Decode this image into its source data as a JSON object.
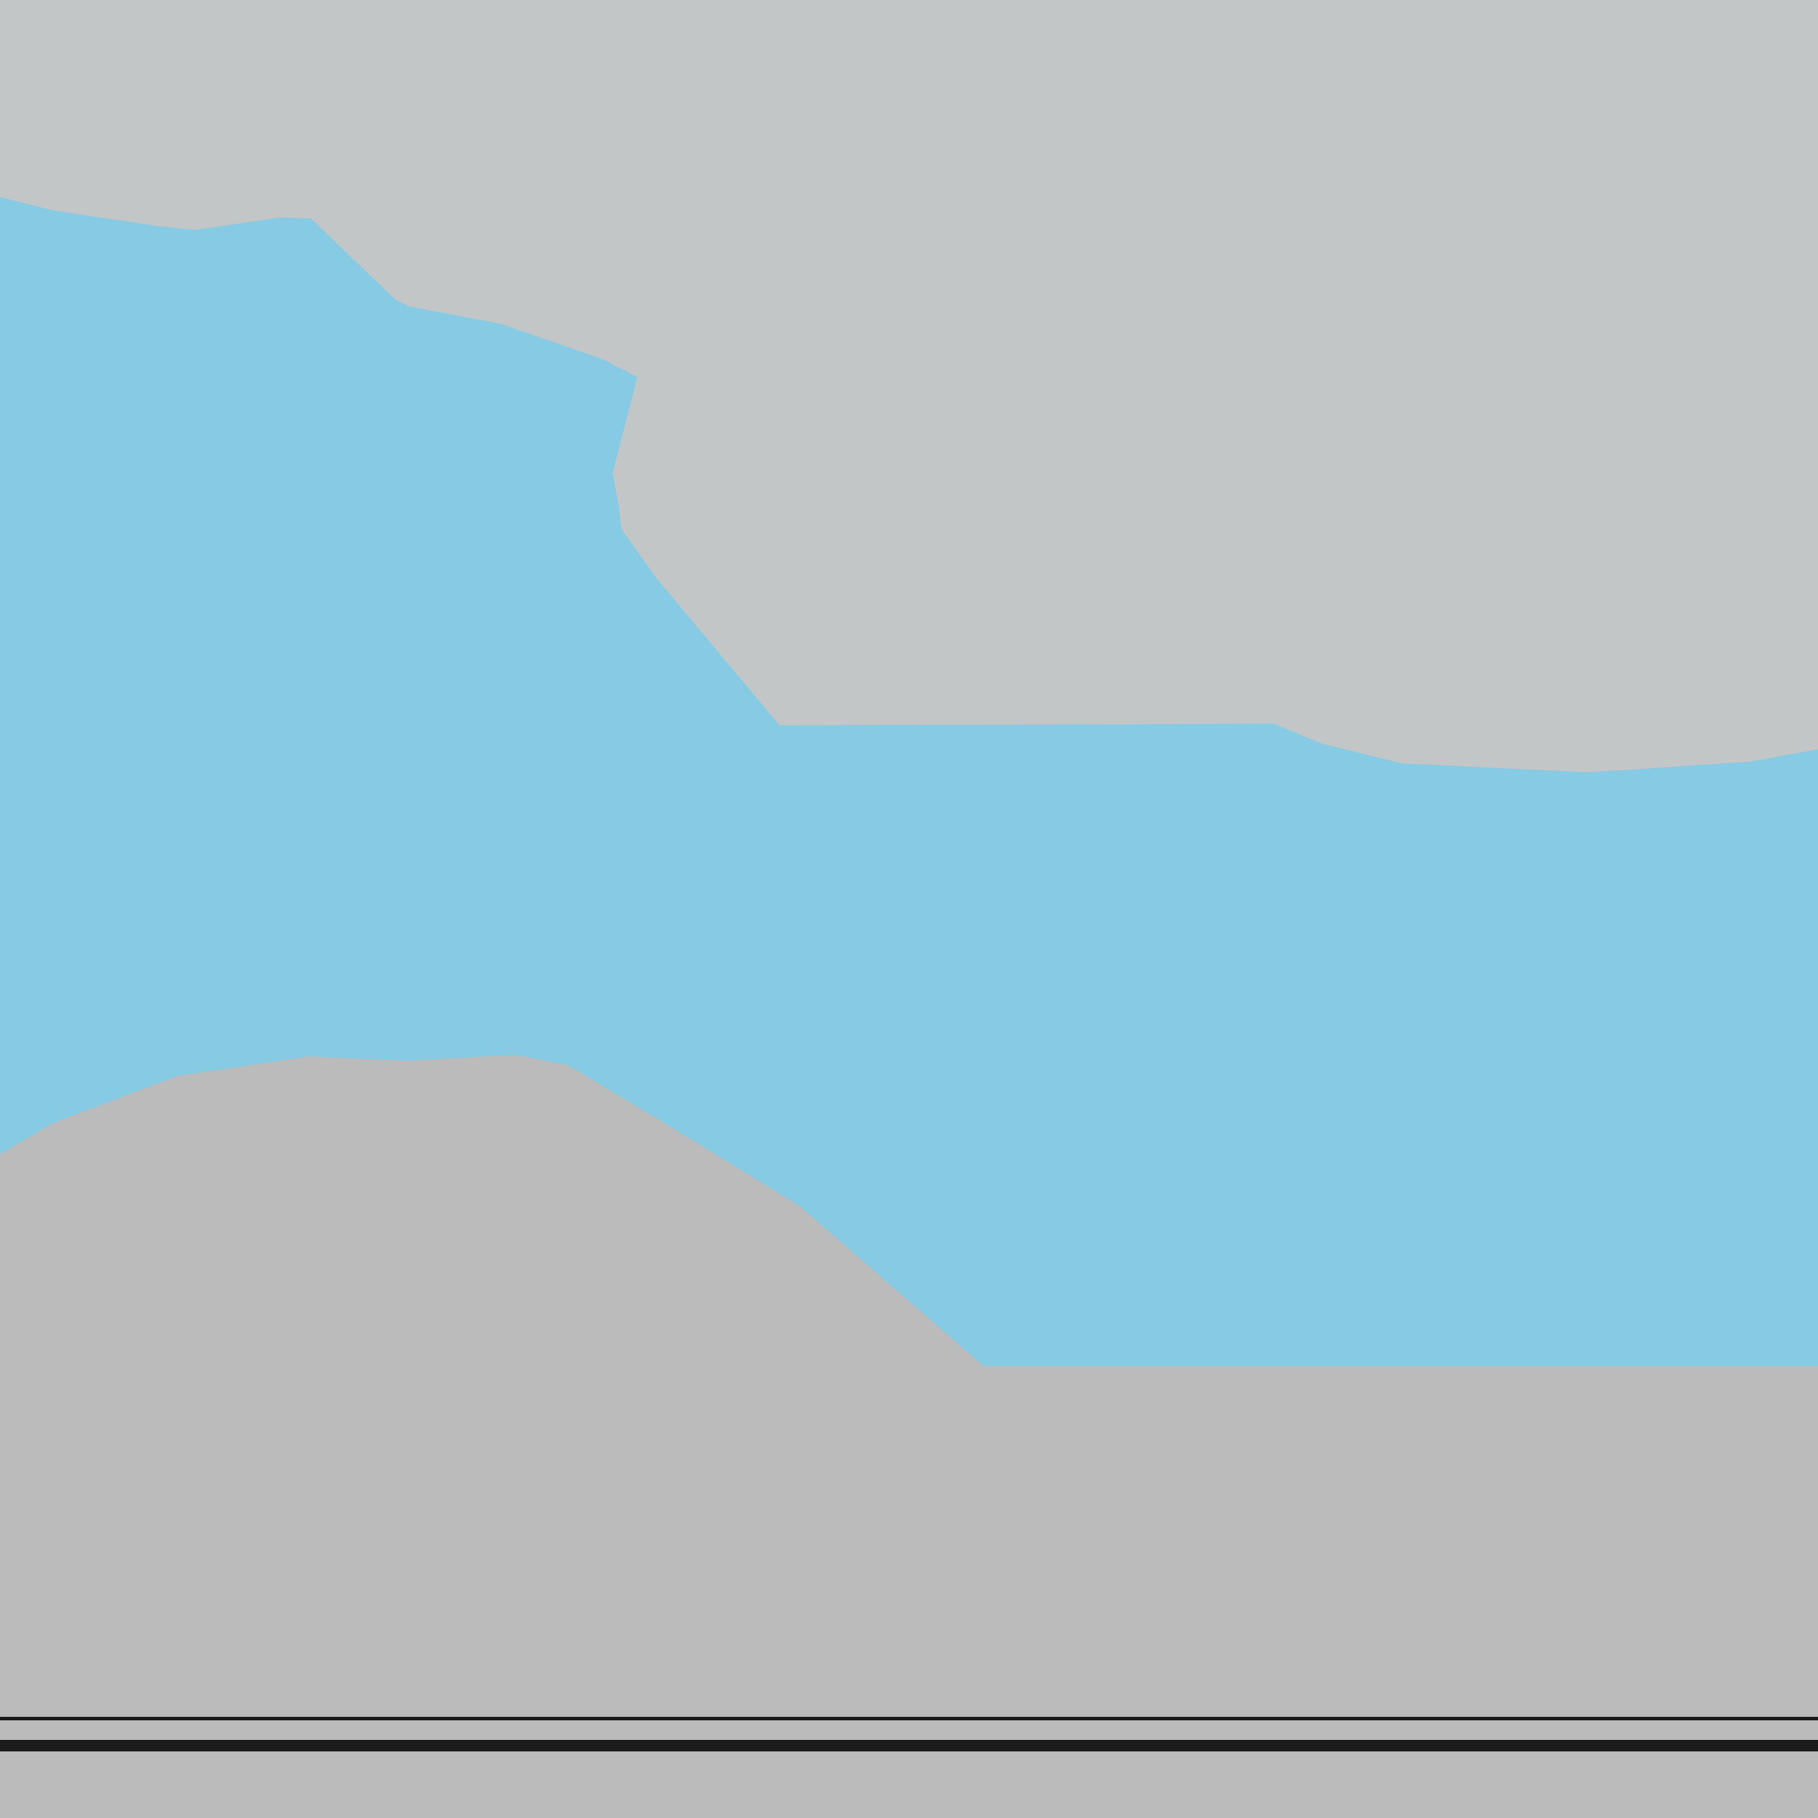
{
  "map": {
    "colors": {
      "upper_land": "#c3c6c7",
      "water": "#86cae3",
      "lower_land": "#bbbbbb",
      "rail": "#1c1c1c"
    },
    "features": [
      {
        "name": "upper-land-area",
        "kind": "land"
      },
      {
        "name": "water-area",
        "kind": "water"
      },
      {
        "name": "lower-land-area",
        "kind": "land"
      },
      {
        "name": "railway-line",
        "kind": "rail"
      }
    ]
  }
}
